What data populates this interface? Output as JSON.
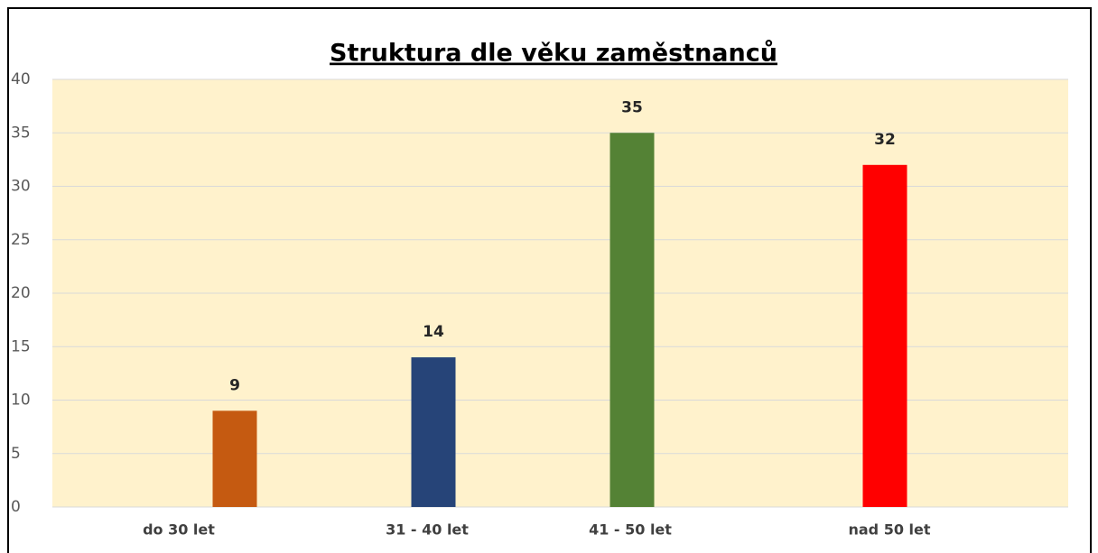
{
  "chart_data": {
    "type": "bar",
    "title": "Struktura dle věku zaměstnanců",
    "categories": [
      "do 30 let",
      "31 - 40 let",
      "41 - 50 let",
      "nad 50 let"
    ],
    "values": [
      9,
      14,
      35,
      32
    ],
    "colors": [
      "#C55A11",
      "#264478",
      "#548235",
      "#FF0000"
    ],
    "ylim": [
      0,
      40
    ],
    "yticks": [
      0,
      5,
      10,
      15,
      20,
      25,
      30,
      35,
      40
    ],
    "grid": true
  }
}
